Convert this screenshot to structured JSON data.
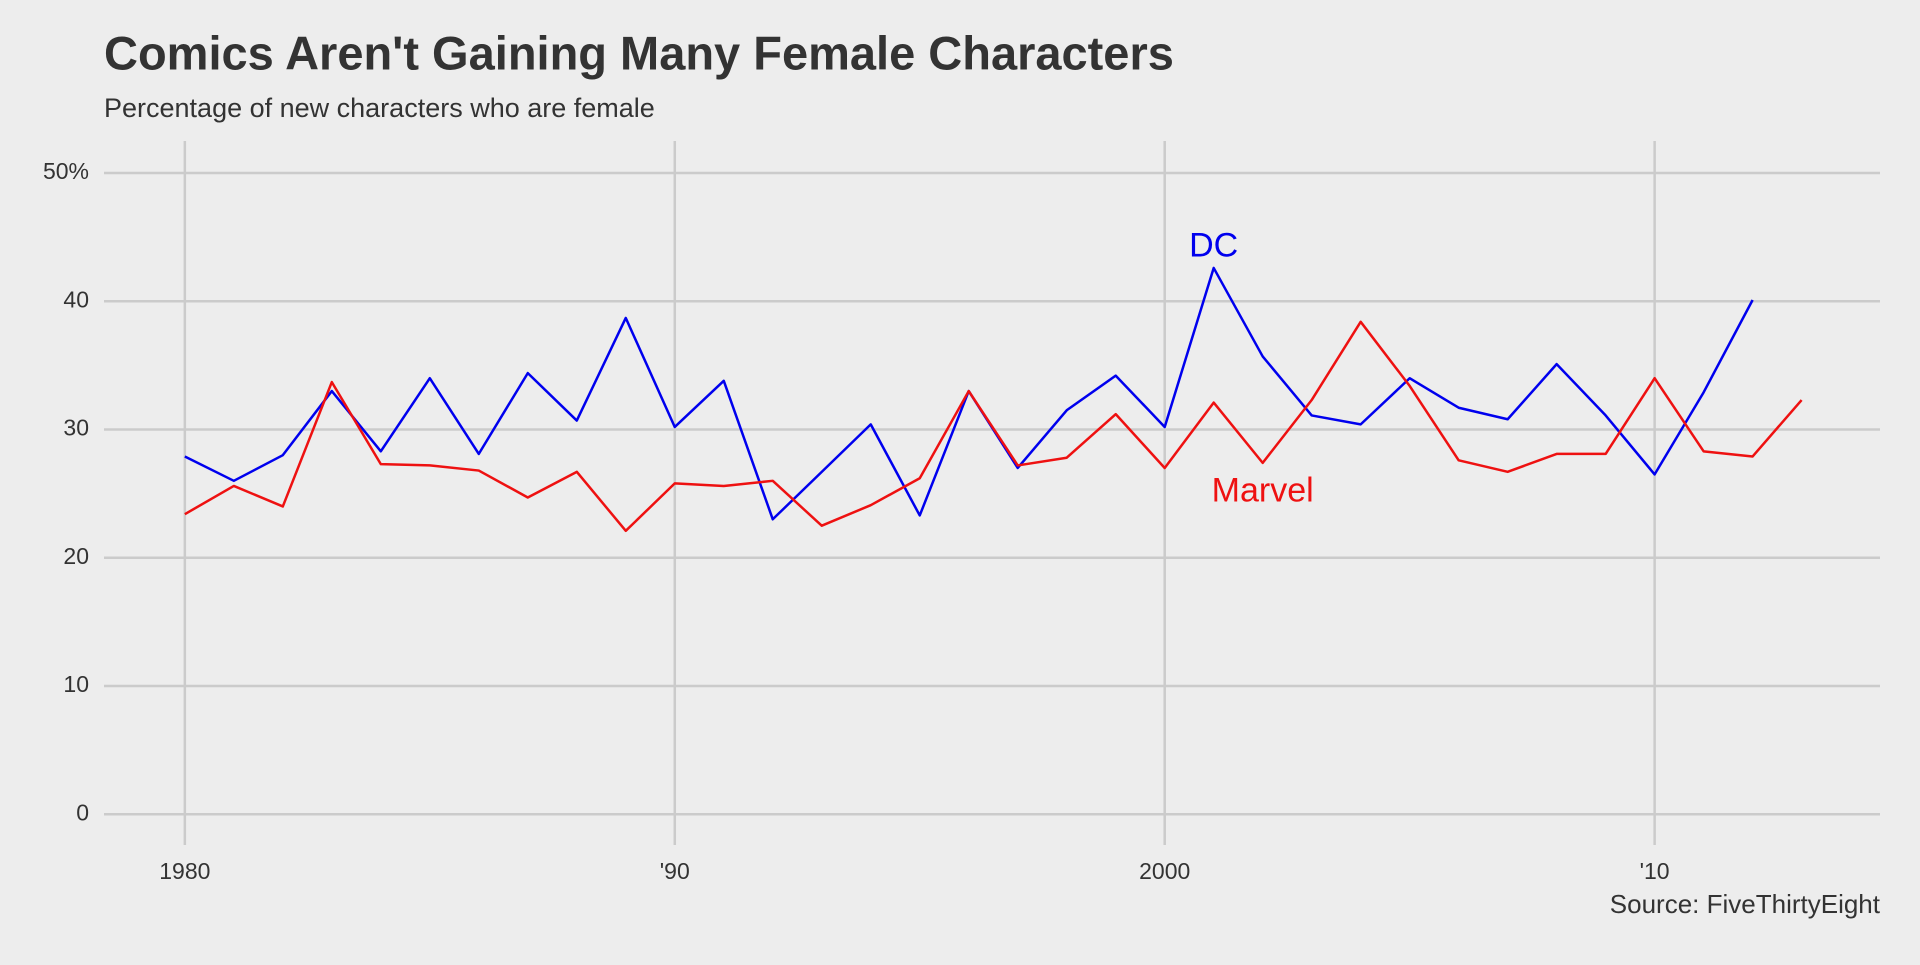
{
  "chart_data": {
    "type": "line",
    "title": "Comics Aren't Gaining Many Female Characters",
    "subtitle": "Percentage of new characters who are female",
    "source": "Source: FiveThirtyEight",
    "x": [
      1980,
      1981,
      1982,
      1983,
      1984,
      1985,
      1986,
      1987,
      1988,
      1989,
      1990,
      1991,
      1992,
      1993,
      1994,
      1995,
      1996,
      1997,
      1998,
      1999,
      2000,
      2001,
      2002,
      2003,
      2004,
      2005,
      2006,
      2007,
      2008,
      2009,
      2010,
      2011,
      2012,
      2013
    ],
    "series": [
      {
        "name": "DC",
        "color": "#0000ee",
        "values": [
          27.9,
          26.0,
          28.0,
          33.0,
          28.3,
          34.0,
          28.1,
          34.4,
          30.7,
          38.7,
          30.2,
          33.8,
          23.0,
          26.7,
          30.4,
          23.3,
          33.0,
          27.0,
          31.5,
          34.2,
          30.2,
          42.6,
          35.7,
          31.1,
          30.4,
          34.0,
          31.7,
          30.8,
          35.1,
          31.1,
          26.5,
          32.9,
          40.1,
          null
        ],
        "label_x": 2001,
        "label_y": 44.2
      },
      {
        "name": "Marvel",
        "color": "#ee1111",
        "values": [
          23.4,
          25.6,
          24.0,
          33.7,
          27.3,
          27.2,
          26.8,
          24.7,
          26.7,
          22.1,
          25.8,
          25.6,
          26.0,
          22.5,
          24.1,
          26.2,
          33.0,
          27.2,
          27.8,
          31.2,
          27.0,
          32.1,
          27.4,
          32.3,
          38.4,
          33.4,
          27.6,
          26.7,
          28.1,
          28.1,
          34.0,
          28.3,
          27.9,
          32.3
        ],
        "label_x": 2002,
        "label_y": 25.1
      }
    ],
    "xlim": [
      1978.35,
      2014.6
    ],
    "ylim": [
      -2.4,
      52.5
    ],
    "xticks": [
      1980,
      {
        "value": 1990,
        "label": "'90"
      },
      2000,
      {
        "value": 2010,
        "label": "'10"
      }
    ],
    "yticks": [
      0,
      10,
      20,
      30,
      40,
      {
        "value": 50,
        "label": "50%"
      }
    ],
    "grid": true
  }
}
